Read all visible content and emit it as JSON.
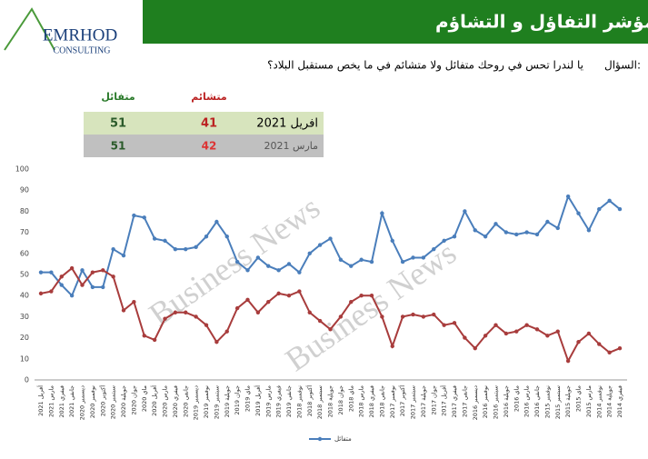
{
  "header": {
    "logo": "EMRHOD",
    "logo_sub": "CONSULTING",
    "title": "مؤشر التفاؤل و التشاؤم"
  },
  "question": {
    "label": "السؤال:",
    "text": "يا لندرا تحس في روحك متفائل ولا متشائم في ما يخص مستقبل البلاد؟"
  },
  "table": {
    "header": [
      "متشائم",
      "متفائل"
    ],
    "rows": [
      [
        "افريل 2021",
        "41",
        "51"
      ],
      [
        "مارس 2021",
        "42",
        "51"
      ]
    ]
  },
  "watermark": "Business News",
  "chart_data": {
    "type": "line",
    "categories": [
      "أفريل 2021",
      "مارس 2021",
      "فيفري 2021",
      "جانفي 2021",
      "ديسمبر 2020",
      "نوفمبر 2020",
      "أكتوبر 2020",
      "سبتمبر 2020",
      "جويلية 2020",
      "جوان 2020",
      "ماي 2020",
      "أفريل 2020",
      "مارس 2020",
      "فيفري 2020",
      "جانفي 2020",
      "ديسمبر 2019",
      "نوفمبر 2019",
      "سبتمبر 2019",
      "جويلية 2019",
      "جوان 2019",
      "ماي 2019",
      "أفريل 2019",
      "مارس 2019",
      "فيفري 2019",
      "جانفي 2019",
      "نوفمبر 2018",
      "أكتوبر 2018",
      "سبتمبر 2018",
      "جويلية 2018",
      "جوان 2018",
      "ماي 2018",
      "مارس 2018",
      "فيفري 2018",
      "جانفي 2018",
      "نوفمبر 2017",
      "أكتوبر 2017",
      "سبتمبر 2017",
      "جويلية 2017",
      "جوان 2017",
      "أفريل 2017",
      "فيفري 2017",
      "جانفي 2017",
      "ديسمبر 2016",
      "نوفمبر 2016",
      "سبتمبر 2016",
      "جويلية 2016",
      "ماي 2016",
      "مارس 2016",
      "جانفي 2016",
      "نوفمبر 2015",
      "سبتمبر 2015",
      "جويلية 2015",
      "ماي 2015",
      "مارس 2015",
      "نوفمبر 2014",
      "جويلية 2014",
      "فيفري 2014"
    ],
    "series": [
      {
        "name": "متفائل",
        "color": "#4a7ebb",
        "values": [
          51,
          51,
          45,
          40,
          52,
          44,
          44,
          62,
          59,
          78,
          77,
          67,
          66,
          62,
          62,
          63,
          68,
          75,
          68,
          56,
          52,
          58,
          54,
          52,
          55,
          51,
          60,
          64,
          67,
          57,
          54,
          57,
          56,
          79,
          66,
          56,
          58,
          58,
          62,
          66,
          68,
          80,
          71,
          68,
          74,
          70,
          69,
          70,
          69,
          75,
          72,
          87,
          79,
          71,
          81,
          85,
          81
        ]
      },
      {
        "color": "#a83c3c",
        "values": [
          41,
          42,
          49,
          53,
          45,
          51,
          52,
          49,
          33,
          37,
          21,
          19,
          29,
          32,
          32,
          30,
          26,
          18,
          23,
          34,
          38,
          32,
          37,
          41,
          40,
          42,
          32,
          28,
          24,
          30,
          37,
          40,
          40,
          30,
          16,
          30,
          31,
          30,
          31,
          26,
          27,
          20,
          15,
          21,
          26,
          22,
          23,
          26,
          24,
          21,
          23,
          9,
          18,
          22,
          17,
          13,
          15
        ]
      }
    ],
    "ylim": [
      0,
      100
    ],
    "yticks": [
      0,
      10,
      20,
      30,
      40,
      50,
      60,
      70,
      80,
      90,
      100
    ],
    "legend": "bottom"
  }
}
